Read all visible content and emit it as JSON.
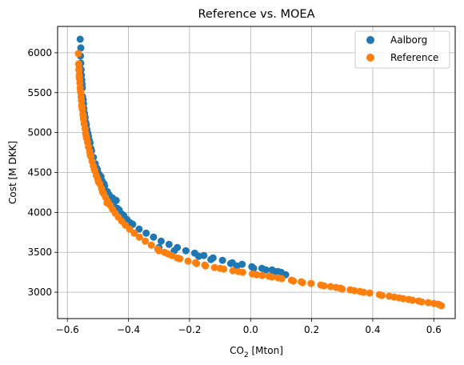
{
  "chart_data": {
    "type": "scatter",
    "title": "Reference vs. MOEA",
    "xlabel": "CO",
    "xlabel_sub": "2",
    "xlabel_rest": " [Mton]",
    "ylabel": "Cost [M DKK]",
    "xlim": [
      -0.632,
      0.67
    ],
    "ylim": [
      2670,
      6330
    ],
    "xticks": [
      "-0.6",
      "-0.4",
      "-0.2",
      "0.0",
      "0.2",
      "0.4",
      "0.6"
    ],
    "xtick_values": [
      -0.6,
      -0.4,
      -0.2,
      0.0,
      0.2,
      0.4,
      0.6
    ],
    "yticks": [
      "3000",
      "3500",
      "4000",
      "4500",
      "5000",
      "5500",
      "6000"
    ],
    "ytick_values": [
      3000,
      3500,
      4000,
      4500,
      5000,
      5500,
      6000
    ],
    "grid": true,
    "legend_position": "top-right",
    "series": [
      {
        "name": "Aalborg",
        "color": "#1f77b4",
        "points": [
          [
            -0.558,
            6170
          ],
          [
            -0.556,
            6060
          ],
          [
            -0.557,
            5960
          ],
          [
            -0.556,
            5870
          ],
          [
            -0.555,
            5790
          ],
          [
            -0.554,
            5720
          ],
          [
            -0.553,
            5660
          ],
          [
            -0.552,
            5610
          ],
          [
            -0.551,
            5560
          ],
          [
            -0.55,
            5450
          ],
          [
            -0.547,
            5360
          ],
          [
            -0.544,
            5240
          ],
          [
            -0.54,
            5130
          ],
          [
            -0.536,
            5040
          ],
          [
            -0.531,
            4950
          ],
          [
            -0.526,
            4870
          ],
          [
            -0.521,
            4770
          ],
          [
            -0.515,
            4690
          ],
          [
            -0.509,
            4610
          ],
          [
            -0.502,
            4540
          ],
          [
            -0.495,
            4470
          ],
          [
            -0.487,
            4400
          ],
          [
            -0.478,
            4330
          ],
          [
            -0.469,
            4260
          ],
          [
            -0.459,
            4190
          ],
          [
            -0.448,
            4120
          ],
          [
            -0.436,
            4050
          ],
          [
            -0.422,
            3980
          ],
          [
            -0.405,
            3910
          ],
          [
            -0.386,
            3850
          ],
          [
            -0.365,
            3790
          ],
          [
            -0.342,
            3740
          ],
          [
            -0.318,
            3690
          ],
          [
            -0.293,
            3640
          ],
          [
            -0.267,
            3600
          ],
          [
            -0.24,
            3560
          ],
          [
            -0.212,
            3520
          ],
          [
            -0.183,
            3490
          ],
          [
            -0.153,
            3460
          ],
          [
            -0.123,
            3430
          ],
          [
            -0.092,
            3400
          ],
          [
            -0.06,
            3370
          ],
          [
            -0.028,
            3350
          ],
          [
            0.004,
            3320
          ],
          [
            0.037,
            3300
          ],
          [
            0.07,
            3280
          ],
          [
            0.09,
            3260
          ],
          [
            0.115,
            3220
          ],
          [
            -0.44,
            4150
          ],
          [
            -0.452,
            4180
          ],
          [
            -0.463,
            4220
          ],
          [
            -0.43,
            4030
          ],
          [
            -0.415,
            3960
          ],
          [
            -0.395,
            3870
          ],
          [
            -0.3,
            3560
          ],
          [
            -0.25,
            3520
          ],
          [
            -0.17,
            3450
          ],
          [
            -0.13,
            3410
          ],
          [
            -0.065,
            3360
          ],
          [
            -0.045,
            3330
          ],
          [
            0.01,
            3300
          ],
          [
            0.05,
            3280
          ],
          [
            0.08,
            3260
          ],
          [
            0.1,
            3250
          ],
          [
            -0.48,
            4360
          ],
          [
            -0.49,
            4450
          ],
          [
            -0.5,
            4500
          ],
          [
            -0.505,
            4560
          ],
          [
            -0.517,
            4680
          ],
          [
            -0.523,
            4800
          ],
          [
            -0.528,
            4900
          ],
          [
            -0.533,
            4990
          ],
          [
            -0.538,
            5100
          ],
          [
            -0.542,
            5190
          ],
          [
            -0.546,
            5300
          ],
          [
            -0.548,
            5410
          ]
        ]
      },
      {
        "name": "Reference",
        "color": "#ff7f0e",
        "points": [
          [
            -0.564,
            5990
          ],
          [
            -0.563,
            5860
          ],
          [
            -0.562,
            5780
          ],
          [
            -0.561,
            5720
          ],
          [
            -0.56,
            5670
          ],
          [
            -0.559,
            5620
          ],
          [
            -0.558,
            5560
          ],
          [
            -0.556,
            5500
          ],
          [
            -0.555,
            5450
          ],
          [
            -0.554,
            5400
          ],
          [
            -0.553,
            5340
          ],
          [
            -0.551,
            5290
          ],
          [
            -0.549,
            5230
          ],
          [
            -0.547,
            5170
          ],
          [
            -0.545,
            5110
          ],
          [
            -0.542,
            5050
          ],
          [
            -0.54,
            4990
          ],
          [
            -0.537,
            4930
          ],
          [
            -0.534,
            4880
          ],
          [
            -0.531,
            4820
          ],
          [
            -0.527,
            4760
          ],
          [
            -0.523,
            4700
          ],
          [
            -0.519,
            4640
          ],
          [
            -0.515,
            4580
          ],
          [
            -0.51,
            4520
          ],
          [
            -0.505,
            4460
          ],
          [
            -0.5,
            4410
          ],
          [
            -0.494,
            4360
          ],
          [
            -0.488,
            4300
          ],
          [
            -0.482,
            4240
          ],
          [
            -0.475,
            4190
          ],
          [
            -0.468,
            4140
          ],
          [
            -0.46,
            4090
          ],
          [
            -0.452,
            4040
          ],
          [
            -0.443,
            3990
          ],
          [
            -0.433,
            3940
          ],
          [
            -0.422,
            3890
          ],
          [
            -0.41,
            3840
          ],
          [
            -0.396,
            3790
          ],
          [
            -0.381,
            3740
          ],
          [
            -0.364,
            3690
          ],
          [
            -0.345,
            3640
          ],
          [
            -0.325,
            3590
          ],
          [
            -0.304,
            3540
          ],
          [
            -0.282,
            3500
          ],
          [
            -0.258,
            3460
          ],
          [
            -0.232,
            3420
          ],
          [
            -0.205,
            3390
          ],
          [
            -0.177,
            3360
          ],
          [
            -0.148,
            3330
          ],
          [
            -0.118,
            3310
          ],
          [
            -0.088,
            3290
          ],
          [
            -0.058,
            3270
          ],
          [
            -0.026,
            3250
          ],
          [
            0.006,
            3230
          ],
          [
            0.038,
            3210
          ],
          [
            0.07,
            3190
          ],
          [
            0.102,
            3170
          ],
          [
            0.134,
            3150
          ],
          [
            0.166,
            3130
          ],
          [
            0.198,
            3110
          ],
          [
            0.23,
            3090
          ],
          [
            0.262,
            3070
          ],
          [
            0.294,
            3050
          ],
          [
            0.326,
            3030
          ],
          [
            0.358,
            3010
          ],
          [
            0.39,
            2990
          ],
          [
            0.422,
            2970
          ],
          [
            0.454,
            2950
          ],
          [
            0.486,
            2930
          ],
          [
            0.518,
            2910
          ],
          [
            0.55,
            2890
          ],
          [
            0.582,
            2870
          ],
          [
            0.614,
            2850
          ],
          [
            0.625,
            2830
          ],
          [
            -0.3,
            3520
          ],
          [
            -0.27,
            3480
          ],
          [
            -0.24,
            3430
          ],
          [
            -0.18,
            3370
          ],
          [
            -0.15,
            3340
          ],
          [
            -0.1,
            3300
          ],
          [
            -0.04,
            3260
          ],
          [
            0.02,
            3220
          ],
          [
            0.06,
            3200
          ],
          [
            0.09,
            3180
          ],
          [
            0.14,
            3140
          ],
          [
            0.17,
            3120
          ],
          [
            0.24,
            3080
          ],
          [
            0.28,
            3060
          ],
          [
            0.3,
            3040
          ],
          [
            0.34,
            3020
          ],
          [
            0.37,
            3000
          ],
          [
            0.43,
            2960
          ],
          [
            0.47,
            2940
          ],
          [
            0.5,
            2920
          ],
          [
            0.53,
            2900
          ],
          [
            0.56,
            2880
          ],
          [
            0.6,
            2860
          ],
          [
            0.62,
            2840
          ],
          [
            -0.47,
            4120
          ],
          [
            -0.485,
            4260
          ],
          [
            -0.498,
            4380
          ],
          [
            -0.512,
            4540
          ],
          [
            -0.525,
            4720
          ],
          [
            -0.538,
            4950
          ],
          [
            -0.548,
            5200
          ],
          [
            -0.552,
            5320
          ],
          [
            -0.557,
            5520
          ],
          [
            -0.561,
            5690
          ],
          [
            -0.562,
            5800
          ]
        ]
      }
    ]
  }
}
